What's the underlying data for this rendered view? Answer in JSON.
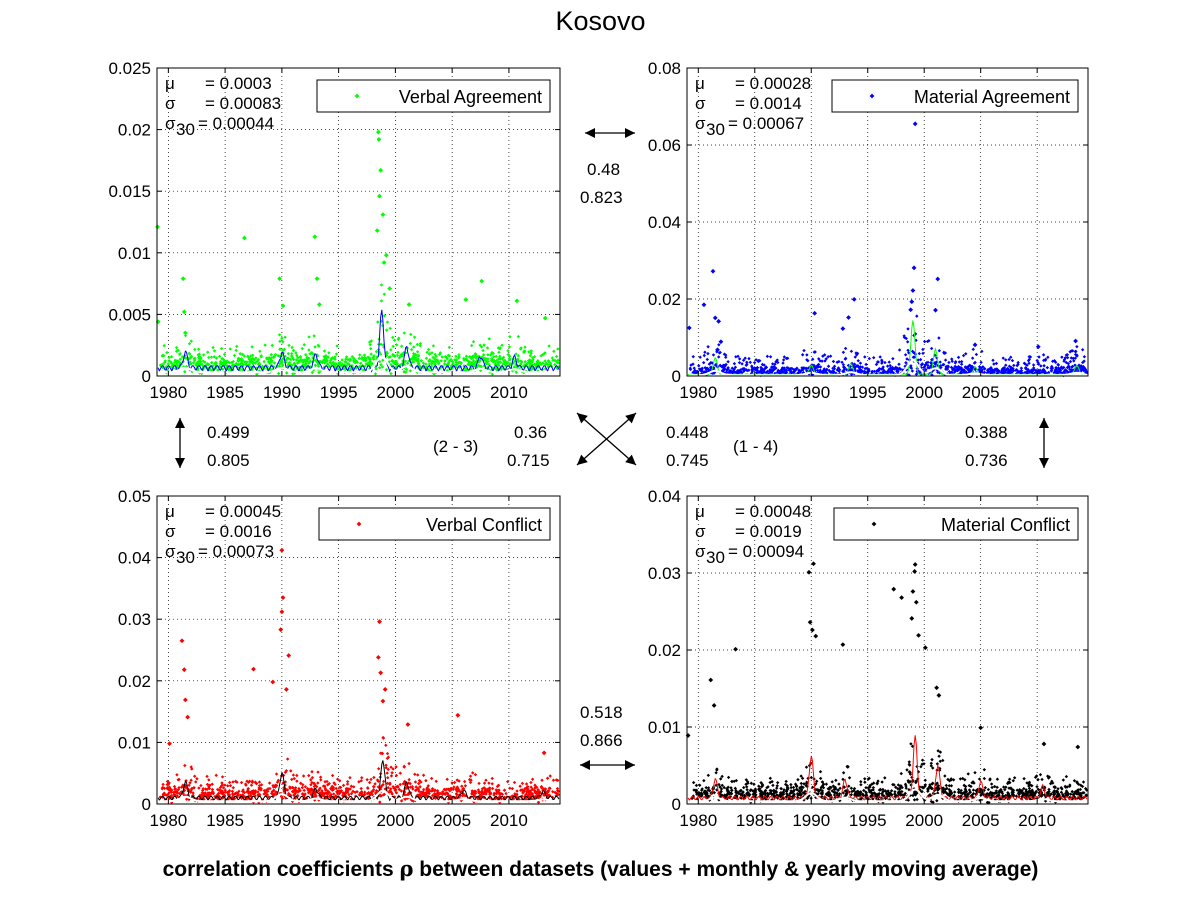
{
  "figure": {
    "title": "Kosovo",
    "caption_before_symbol": "correlation coefficients ",
    "caption_symbol": "ρ",
    "caption_after_symbol": " between datasets (values + monthly & yearly moving average)"
  },
  "annotations": {
    "top_pair": {
      "rho_values": "0.48",
      "rho_ma": "0.823"
    },
    "left_pair": {
      "rho_values": "0.499",
      "rho_ma": "0.805"
    },
    "right_pair": {
      "rho_values": "0.388",
      "rho_ma": "0.736"
    },
    "bottom_pair": {
      "rho_values": "0.518",
      "rho_ma": "0.866"
    },
    "diag_2_3": {
      "label": "(2 - 3)",
      "rho_values": "0.36",
      "rho_ma": "0.715"
    },
    "diag_1_4": {
      "label": "(1 - 4)",
      "rho_values": "0.448",
      "rho_ma": "0.745"
    }
  },
  "chart_data": [
    {
      "type": "scatter",
      "title": "",
      "xlabel": "",
      "ylabel": "",
      "xlim": [
        1979,
        2014.5
      ],
      "ylim": [
        0,
        0.025
      ],
      "x_ticks": [
        "1980",
        "1985",
        "1990",
        "1995",
        "2000",
        "2005",
        "2010"
      ],
      "y_ticks": [
        "0",
        "0.005",
        "0.01",
        "0.015",
        "0.02",
        "0.025"
      ],
      "grid": true,
      "legend": {
        "label": "Verbal Agreement",
        "placement": "top-right"
      },
      "color": "#00ff00",
      "stats": {
        "mu_value": "= 0.0003",
        "sigma_value": "= 0.00083",
        "sigma30_value": "= 0.00044"
      },
      "highlights": [
        {
          "x": 1979.05,
          "y": 0.0121
        },
        {
          "x": 1979.1,
          "y": 0.0044
        },
        {
          "x": 1981.3,
          "y": 0.0079
        },
        {
          "x": 1981.4,
          "y": 0.0052
        },
        {
          "x": 1981.5,
          "y": 0.0035
        },
        {
          "x": 1986.7,
          "y": 0.0112
        },
        {
          "x": 1989.8,
          "y": 0.0079
        },
        {
          "x": 1990.1,
          "y": 0.0057
        },
        {
          "x": 1992.9,
          "y": 0.0113
        },
        {
          "x": 1993.1,
          "y": 0.0079
        },
        {
          "x": 1993.3,
          "y": 0.0058
        },
        {
          "x": 1998.5,
          "y": 0.0198
        },
        {
          "x": 1998.55,
          "y": 0.0192
        },
        {
          "x": 1998.7,
          "y": 0.0167
        },
        {
          "x": 1998.6,
          "y": 0.0146
        },
        {
          "x": 1998.9,
          "y": 0.0131
        },
        {
          "x": 1998.4,
          "y": 0.0118
        },
        {
          "x": 1999.2,
          "y": 0.0098
        },
        {
          "x": 1999.0,
          "y": 0.0092
        },
        {
          "x": 1999.5,
          "y": 0.0071
        },
        {
          "x": 2001.2,
          "y": 0.0058
        },
        {
          "x": 2007.6,
          "y": 0.0077
        },
        {
          "x": 2006.2,
          "y": 0.0062
        },
        {
          "x": 2010.7,
          "y": 0.0061
        },
        {
          "x": 2013.2,
          "y": 0.0047
        }
      ],
      "baseline": 0.0006,
      "yearly_peak": 0.0019,
      "monthly_peak": 0.0052
    },
    {
      "type": "scatter",
      "title": "",
      "xlabel": "",
      "ylabel": "",
      "xlim": [
        1979,
        2014.5
      ],
      "ylim": [
        0,
        0.08
      ],
      "x_ticks": [
        "1980",
        "1985",
        "1990",
        "1995",
        "2000",
        "2005",
        "2010"
      ],
      "y_ticks": [
        "0",
        "0.02",
        "0.04",
        "0.06",
        "0.08"
      ],
      "grid": true,
      "legend": {
        "label": "Material Agreement",
        "placement": "top-right"
      },
      "color": "#0000ff",
      "stats": {
        "mu_value": "= 0.00028",
        "sigma_value": "= 0.0014",
        "sigma30_value": "= 0.00067"
      },
      "highlights": [
        {
          "x": 1979.2,
          "y": 0.0125
        },
        {
          "x": 1980.5,
          "y": 0.0185
        },
        {
          "x": 1981.3,
          "y": 0.0272
        },
        {
          "x": 1981.5,
          "y": 0.0151
        },
        {
          "x": 1981.8,
          "y": 0.0142
        },
        {
          "x": 1982.0,
          "y": 0.0089
        },
        {
          "x": 1981.7,
          "y": 0.0068
        },
        {
          "x": 1990.3,
          "y": 0.0163
        },
        {
          "x": 1993.8,
          "y": 0.0199
        },
        {
          "x": 1993.3,
          "y": 0.0152
        },
        {
          "x": 1992.8,
          "y": 0.0123
        },
        {
          "x": 1999.2,
          "y": 0.0655
        },
        {
          "x": 1999.1,
          "y": 0.0281
        },
        {
          "x": 1999.0,
          "y": 0.0222
        },
        {
          "x": 1998.9,
          "y": 0.0193
        },
        {
          "x": 1998.8,
          "y": 0.0172
        },
        {
          "x": 2001.2,
          "y": 0.0252
        },
        {
          "x": 2001.0,
          "y": 0.0171
        },
        {
          "x": 2004.5,
          "y": 0.0081
        },
        {
          "x": 2010.1,
          "y": 0.0076
        },
        {
          "x": 2013.4,
          "y": 0.0091
        }
      ],
      "baseline": 0.0004,
      "yearly_peak": 0.0045,
      "monthly_peak": 0.0155
    },
    {
      "type": "scatter",
      "title": "",
      "xlabel": "",
      "ylabel": "",
      "xlim": [
        1979,
        2014.5
      ],
      "ylim": [
        0,
        0.05
      ],
      "x_ticks": [
        "1980",
        "1985",
        "1990",
        "1995",
        "2000",
        "2005",
        "2010"
      ],
      "y_ticks": [
        "0",
        "0.01",
        "0.02",
        "0.03",
        "0.04",
        "0.05"
      ],
      "grid": true,
      "legend": {
        "label": "Verbal Conflict",
        "placement": "top-right"
      },
      "color": "#ff0000",
      "stats": {
        "mu_value": "= 0.00045",
        "sigma_value": "= 0.0016",
        "sigma30_value": "= 0.00073"
      },
      "highlights": [
        {
          "x": 1981.2,
          "y": 0.0265
        },
        {
          "x": 1981.4,
          "y": 0.0218
        },
        {
          "x": 1981.5,
          "y": 0.0169
        },
        {
          "x": 1981.7,
          "y": 0.0141
        },
        {
          "x": 1980.1,
          "y": 0.0098
        },
        {
          "x": 1987.5,
          "y": 0.0219
        },
        {
          "x": 1990.1,
          "y": 0.0335
        },
        {
          "x": 1990.0,
          "y": 0.0312
        },
        {
          "x": 1989.9,
          "y": 0.0283
        },
        {
          "x": 1990.6,
          "y": 0.0241
        },
        {
          "x": 1990.4,
          "y": 0.0186
        },
        {
          "x": 1989.2,
          "y": 0.0198
        },
        {
          "x": 1990.0,
          "y": 0.0412
        },
        {
          "x": 1998.6,
          "y": 0.0296
        },
        {
          "x": 1998.5,
          "y": 0.0238
        },
        {
          "x": 1998.7,
          "y": 0.0213
        },
        {
          "x": 1999.1,
          "y": 0.0186
        },
        {
          "x": 1998.9,
          "y": 0.0167
        },
        {
          "x": 2001.1,
          "y": 0.0129
        },
        {
          "x": 2005.5,
          "y": 0.0144
        },
        {
          "x": 2013.1,
          "y": 0.0083
        }
      ],
      "baseline": 0.0009,
      "yearly_peak": 0.0032,
      "monthly_peak": 0.0092
    },
    {
      "type": "scatter",
      "title": "",
      "xlabel": "",
      "ylabel": "",
      "xlim": [
        1979,
        2014.5
      ],
      "ylim": [
        0,
        0.04
      ],
      "x_ticks": [
        "1980",
        "1985",
        "1990",
        "1995",
        "2000",
        "2005",
        "2010"
      ],
      "y_ticks": [
        "0",
        "0.01",
        "0.02",
        "0.03",
        "0.04"
      ],
      "grid": true,
      "legend": {
        "label": "Material Conflict",
        "placement": "top-right"
      },
      "color": "#000000",
      "stats": {
        "mu_value": "= 0.00048",
        "sigma_value": "= 0.0019",
        "sigma30_value": "= 0.00094"
      },
      "highlights": [
        {
          "x": 1979.1,
          "y": 0.0089
        },
        {
          "x": 1981.1,
          "y": 0.0161
        },
        {
          "x": 1981.4,
          "y": 0.0128
        },
        {
          "x": 1983.3,
          "y": 0.0201
        },
        {
          "x": 1989.8,
          "y": 0.0301
        },
        {
          "x": 1990.2,
          "y": 0.0312
        },
        {
          "x": 1989.9,
          "y": 0.0236
        },
        {
          "x": 1990.1,
          "y": 0.0226
        },
        {
          "x": 1990.4,
          "y": 0.0218
        },
        {
          "x": 1992.8,
          "y": 0.0207
        },
        {
          "x": 1997.3,
          "y": 0.0279
        },
        {
          "x": 1998.0,
          "y": 0.0268
        },
        {
          "x": 1999.2,
          "y": 0.0311
        },
        {
          "x": 1999.15,
          "y": 0.0302
        },
        {
          "x": 1999.0,
          "y": 0.0276
        },
        {
          "x": 1999.3,
          "y": 0.0262
        },
        {
          "x": 1998.9,
          "y": 0.0241
        },
        {
          "x": 1999.5,
          "y": 0.0219
        },
        {
          "x": 2000.1,
          "y": 0.0203
        },
        {
          "x": 2001.1,
          "y": 0.0151
        },
        {
          "x": 2001.3,
          "y": 0.0141
        },
        {
          "x": 2005.0,
          "y": 0.0099
        },
        {
          "x": 2010.6,
          "y": 0.0078
        },
        {
          "x": 2013.6,
          "y": 0.0074
        }
      ],
      "baseline": 0.0007,
      "yearly_peak": 0.0026,
      "monthly_peak": 0.0105
    }
  ]
}
